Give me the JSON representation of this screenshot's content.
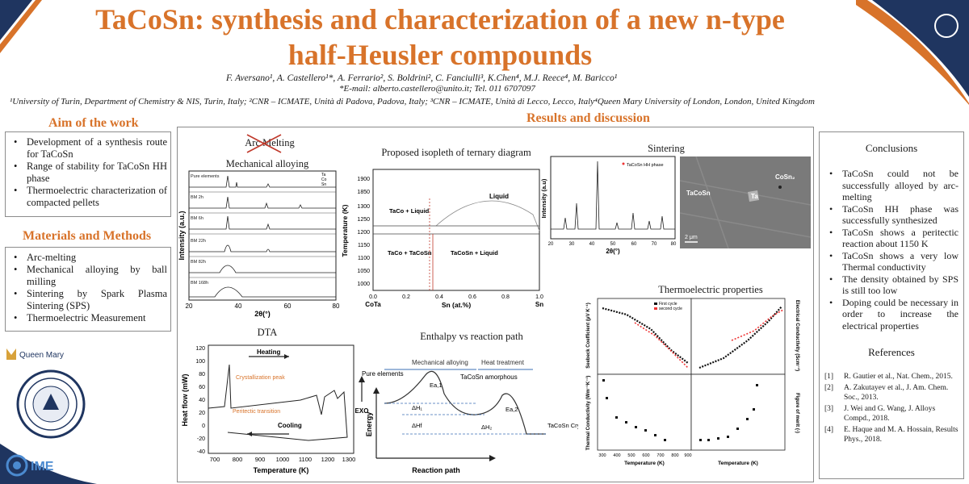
{
  "header": {
    "title_line1": "TaCoSn: synthesis and characterization of a new n-type",
    "title_line2": "half-Heusler compounds",
    "authors": "F. Aversano¹, A. Castellero¹*, A. Ferrario², S. Boldrini², C. Fanciulli³, K.Chen⁴, M.J. Reece⁴, M. Baricco¹",
    "email": "*E-mail: alberto.castellero@unito.it; Tel. 011 6707097",
    "affiliations": "¹University of Turin, Department of Chemistry & NIS, Turin, Italy; ²CNR – ICMATE, Unità di Padova, Padova, Italy; ³CNR – ICMATE, Unità di Lecco, Lecco, Italy⁴Queen Mary University of London, London, United Kingdom"
  },
  "aim": {
    "heading": "Aim of the work",
    "items": [
      "Development of a synthesis route for TaCoSn",
      "Range of stability for TaCoSn HH phase",
      "Thermoelectric characterization of compacted pellets"
    ]
  },
  "methods": {
    "heading": "Materials and Methods",
    "items": [
      "Arc-melting",
      "Mechanical alloying by ball milling",
      "Sintering by Spark Plasma Sintering (SPS)",
      "Thermoelectric Measurement"
    ]
  },
  "results": {
    "heading": "Results and discussion",
    "arc_melting": "Arc Melting",
    "mech_alloying": "Mechanical alloying",
    "xrd": {
      "ylabel": "Intensity (a.u.)",
      "xlabel": "2θ(°)",
      "ticks": [
        "20",
        "40",
        "60",
        "80"
      ],
      "traces": [
        "Pure elements",
        "BM 2h",
        "BM 6h",
        "BM 22h",
        "BM 82h",
        "BM 168h"
      ],
      "legend": [
        "Ta",
        "Co",
        "Sn"
      ]
    },
    "isopleth": {
      "title": "Proposed isopleth of ternary diagram",
      "ylabel": "Temperature (K)",
      "xlabel": "Sn (at.%)",
      "yticks": [
        "1900",
        "1850",
        "1300",
        "1250",
        "1200",
        "1150",
        "1100",
        "1050",
        "1000"
      ],
      "xticks": [
        "0.0",
        "0.2",
        "0.4",
        "0.6",
        "0.8",
        "1.0"
      ],
      "x_left": "CoTa",
      "x_right": "Sn",
      "regions": [
        "Liquid",
        "TaCo + Liquid",
        "TaCo + TaCoSn",
        "TaCoSn + Liquid"
      ]
    },
    "sintering": {
      "title": "Sintering",
      "legend": "TaCoSn HH phase",
      "ylabel": "Intensity (a.u)",
      "xlabel": "2θ(°)",
      "ticks": [
        "20",
        "30",
        "40",
        "50",
        "60",
        "70",
        "80"
      ],
      "sem_labels": [
        "TaCoSn",
        "Ta",
        "CoSn₂"
      ],
      "scale": "2 μm"
    },
    "dta": {
      "title": "DTA",
      "ylabel": "Heat flow (mW)",
      "xlabel": "Temperature (K)",
      "yticks": [
        "120",
        "100",
        "80",
        "60",
        "40",
        "20",
        "0",
        "-20",
        "-40"
      ],
      "xticks": [
        "700",
        "800",
        "900",
        "1000",
        "1100",
        "1200",
        "1300"
      ],
      "heating": "Heating",
      "cooling": "Cooling",
      "crystallization": "Crystallization peak",
      "peritectic": "Peritectic transition",
      "exo": "EXO"
    },
    "enthalpy": {
      "title": "Enthalpy vs reaction path",
      "mech": "Mechanical alloying",
      "heat": "Heat treatment",
      "pure": "Pure elements",
      "amorph": "TaCoSn amorphous",
      "cryst": "TaCoSn Crystalline",
      "ea1": "Ea,1",
      "ea2": "Ea,2",
      "dh1": "ΔH₁",
      "dh2": "ΔH₂",
      "dhf": "ΔHf",
      "ylabel": "Energy",
      "xlabel": "Reaction path"
    },
    "thermo": {
      "title": "Thermoelectric properties",
      "seebeck": "Seebeck Coefficient (μV K⁻¹)",
      "elec": "Electrical Conductivity (Scm⁻¹)",
      "kappa": "Thermal Conductivity (Wm⁻¹K⁻¹)",
      "zt": "Figure of merit (-)",
      "xlabel": "Temperature (K)",
      "first": "First cycle",
      "second": "second cycle",
      "xticks": [
        "300",
        "400",
        "500",
        "600",
        "700",
        "800",
        "900"
      ]
    }
  },
  "conclusions": {
    "heading": "Conclusions",
    "items": [
      "TaCoSn could not be successfully alloyed by arc-melting",
      "TaCoSn HH phase was successfully synthesized",
      "TaCoSn shows a peritectic reaction about 1150 K",
      "TaCoSn shows a very low Thermal conductivity",
      "The density obtained by SPS is still too low",
      "Doping could be necessary in order to increase the electrical properties"
    ]
  },
  "references": {
    "heading": "References",
    "items": [
      {
        "n": "[1]",
        "t": "R. Gautier et al., Nat. Chem., 2015."
      },
      {
        "n": "[2]",
        "t": "A. Zakutayev et al., J. Am. Chem. Soc., 2013."
      },
      {
        "n": "[3]",
        "t": "J. Wei and G. Wang, J. Alloys Compd., 2018."
      },
      {
        "n": "[4]",
        "t": "E. Haque and M. A. Hossain, Results Phys., 2018."
      }
    ]
  },
  "logos": {
    "qm": "Queen Mary",
    "ime": "IME"
  },
  "colors": {
    "accent": "#d8732a",
    "navy": "#1f3560"
  }
}
